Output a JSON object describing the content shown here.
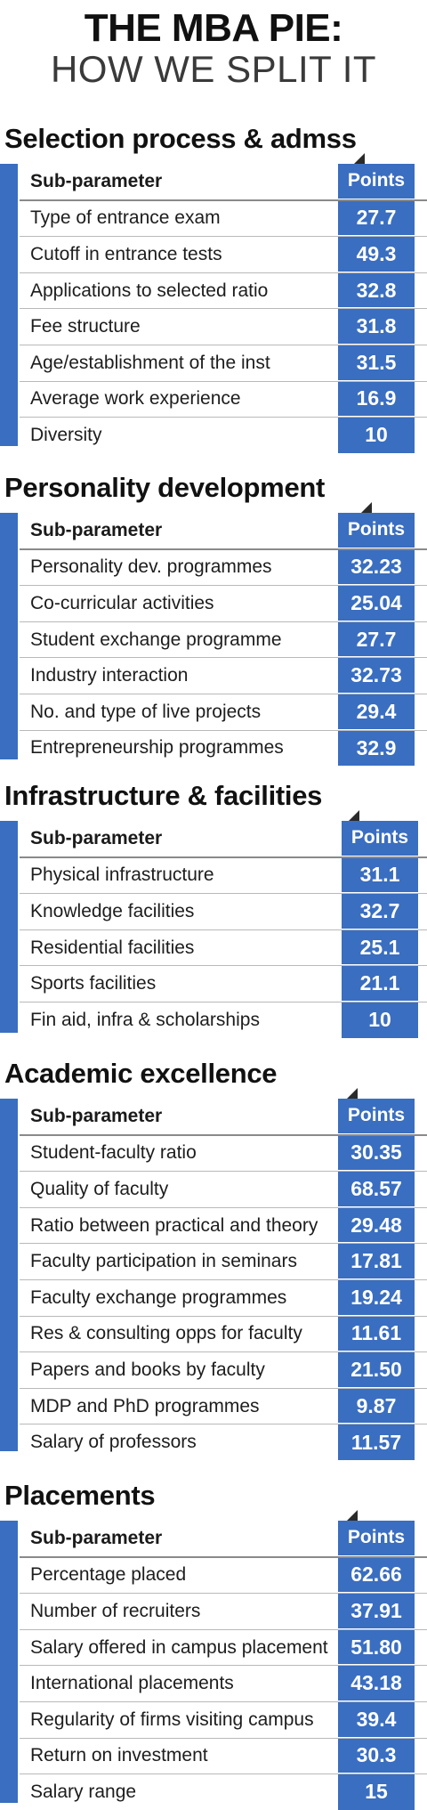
{
  "headline": {
    "line1": "THE MBA PIE:",
    "line2": "HOW WE SPLIT IT"
  },
  "colors": {
    "accent_blue": "#3a6ec0",
    "text": "#1b1b1b",
    "row_rule": "#b9b9b9"
  },
  "chart_data": {
    "type": "table",
    "tables": [
      {
        "title": "Selection process & admss",
        "columns": [
          "Sub-parameter",
          "Points"
        ],
        "rows": [
          [
            "Type of entrance exam",
            "27.7"
          ],
          [
            "Cutoff in entrance tests",
            "49.3"
          ],
          [
            "Applications to selected ratio",
            "32.8"
          ],
          [
            "Fee structure",
            "31.8"
          ],
          [
            "Age/establishment of the inst",
            "31.5"
          ],
          [
            "Average work experience",
            "16.9"
          ],
          [
            "Diversity",
            "10"
          ]
        ]
      },
      {
        "title": "Personality development",
        "columns": [
          "Sub-parameter",
          "Points"
        ],
        "rows": [
          [
            "Personality dev. programmes",
            "32.23"
          ],
          [
            "Co-curricular activities",
            "25.04"
          ],
          [
            "Student exchange programme",
            "27.7"
          ],
          [
            "Industry interaction",
            "32.73"
          ],
          [
            "No. and type of live projects",
            "29.4"
          ],
          [
            "Entrepreneurship programmes",
            "32.9"
          ]
        ]
      },
      {
        "title": "Infrastructure & facilities",
        "columns": [
          "Sub-parameter",
          "Points"
        ],
        "rows": [
          [
            "Physical infrastructure",
            "31.1"
          ],
          [
            "Knowledge facilities",
            "32.7"
          ],
          [
            "Residential facilities",
            "25.1"
          ],
          [
            "Sports facilities",
            "21.1"
          ],
          [
            "Fin aid, infra & scholarships",
            "10"
          ]
        ]
      },
      {
        "title": "Academic excellence",
        "columns": [
          "Sub-parameter",
          "Points"
        ],
        "rows": [
          [
            "Student-faculty ratio",
            "30.35"
          ],
          [
            "Quality of faculty",
            "68.57"
          ],
          [
            "Ratio between practical and theory",
            "29.48"
          ],
          [
            "Faculty participation in seminars",
            "17.81"
          ],
          [
            "Faculty exchange programmes",
            "19.24"
          ],
          [
            "Res & consulting opps for faculty",
            "11.61"
          ],
          [
            "Papers and books by faculty",
            "21.50"
          ],
          [
            "MDP and PhD programmes",
            "9.87"
          ],
          [
            "Salary of professors",
            "11.57"
          ]
        ]
      },
      {
        "title": "Placements",
        "columns": [
          "Sub-parameter",
          "Points"
        ],
        "rows": [
          [
            "Percentage placed",
            "62.66"
          ],
          [
            "Number of recruiters",
            "37.91"
          ],
          [
            "Salary offered in campus placement",
            "51.80"
          ],
          [
            "International placements",
            "43.18"
          ],
          [
            "Regularity of firms visiting campus",
            "39.4"
          ],
          [
            "Return on investment",
            "30.3"
          ],
          [
            "Salary range",
            "15"
          ]
        ]
      }
    ]
  }
}
